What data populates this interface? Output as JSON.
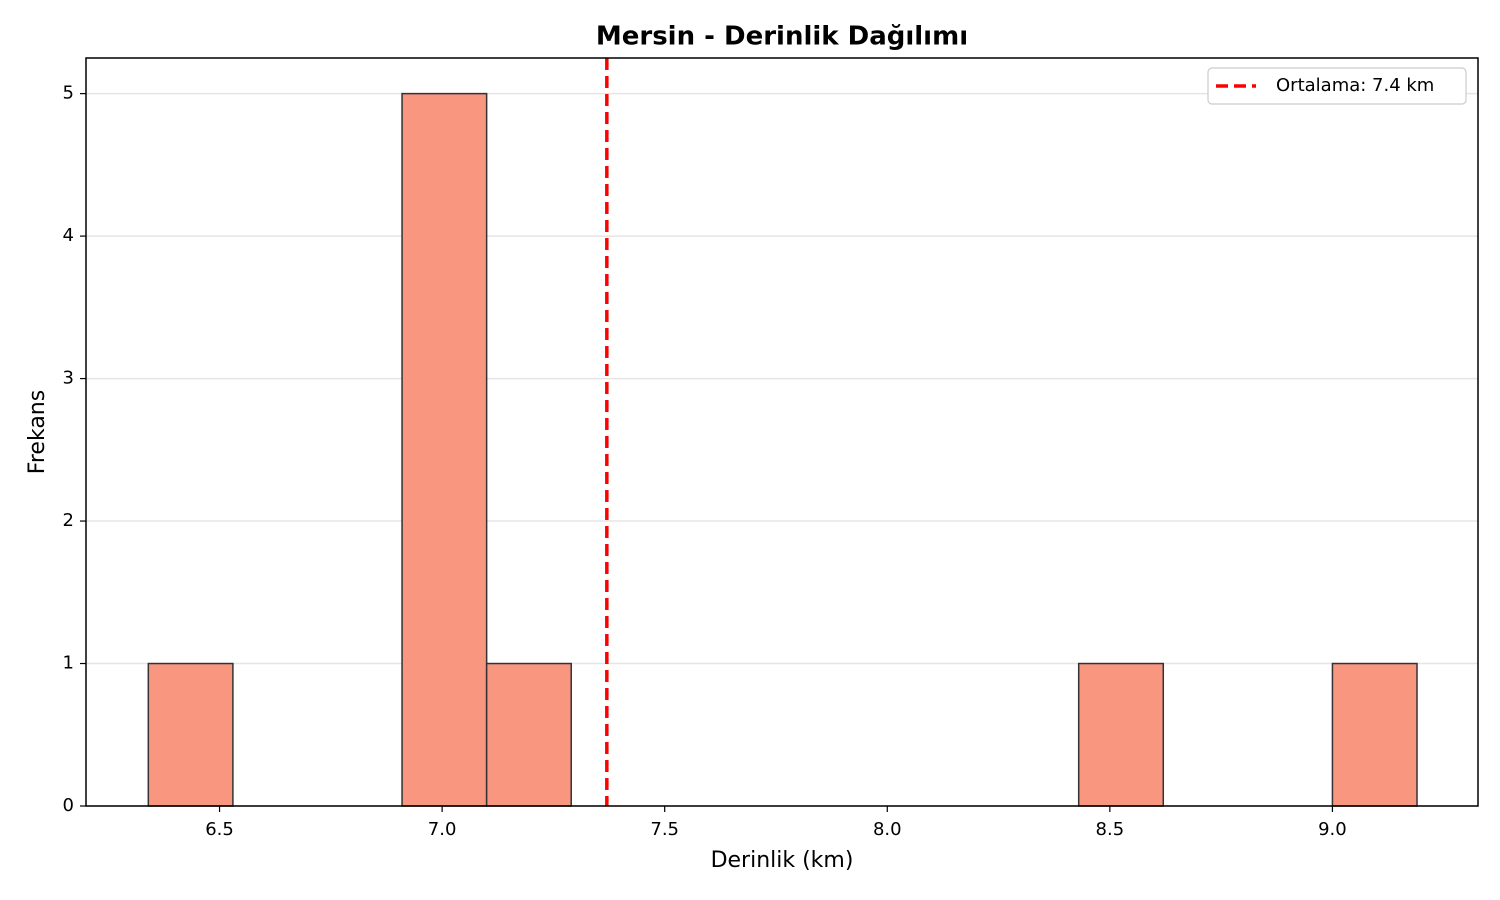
{
  "chart_data": {
    "type": "histogram",
    "title": "Mersin - Derinlik Dağılımı",
    "xlabel": "Derinlik (km)",
    "ylabel": "Frekans",
    "bins": [
      6.34,
      6.53,
      6.72,
      6.91,
      7.1,
      7.29,
      7.48,
      7.67,
      7.86,
      8.05,
      8.24,
      8.43,
      8.62,
      8.81,
      9.0,
      9.19
    ],
    "counts": [
      1,
      0,
      0,
      5,
      1,
      0,
      0,
      0,
      0,
      0,
      0,
      1,
      0,
      0,
      1
    ],
    "color": "#f99680",
    "edgecolor": "#333333",
    "xlim": [
      6.2,
      9.327
    ],
    "ylim": [
      0,
      5.25
    ],
    "xticks": [
      6.5,
      {
        "value": 7,
        "label": "7.0"
      },
      7.5,
      {
        "value": 8,
        "label": "8.0"
      },
      8.5,
      {
        "value": 9,
        "label": "9.0"
      }
    ],
    "yticks": [
      0,
      1,
      2,
      3,
      4,
      5
    ],
    "grid": "y",
    "mean_line": {
      "value": 7.37,
      "label": "Ortalama: 7.4 km",
      "color": "#ff0000"
    },
    "legend": "upper right"
  }
}
